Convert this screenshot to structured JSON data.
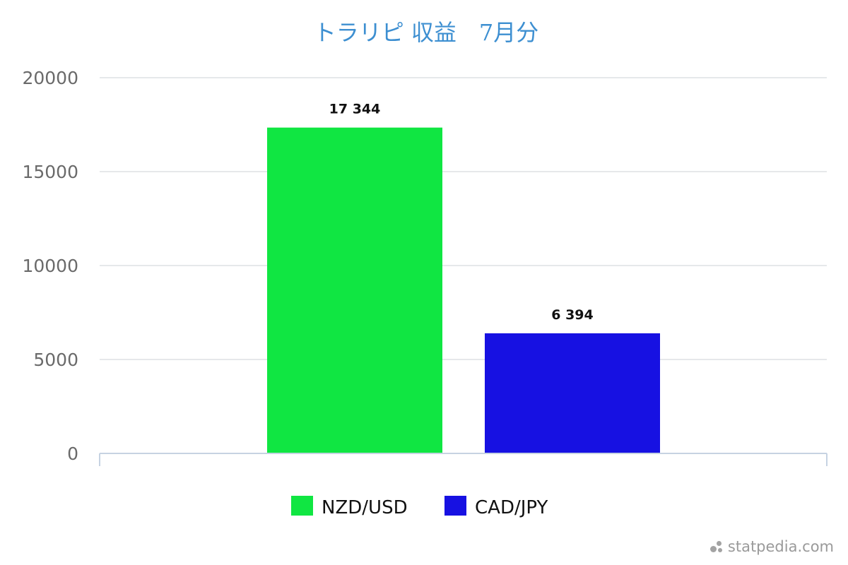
{
  "chart_data": {
    "type": "bar",
    "title": "トラリピ 収益　7月分",
    "categories": [
      "NZD/USD",
      "CAD/JPY"
    ],
    "values": [
      17344,
      6394
    ],
    "data_labels": [
      "17 344",
      "6 394"
    ],
    "colors": [
      "#10e642",
      "#1711e2"
    ],
    "ylim": [
      0,
      20000
    ],
    "yticks": [
      0,
      5000,
      10000,
      15000,
      20000
    ],
    "ytick_labels": [
      "0",
      "5000",
      "10000",
      "15000",
      "20000"
    ],
    "xlabel": "",
    "ylabel": "",
    "grid": true,
    "legend_position": "bottom-center"
  },
  "watermark": {
    "text": "statpedia.com",
    "icon": "statpedia-dots-icon"
  }
}
